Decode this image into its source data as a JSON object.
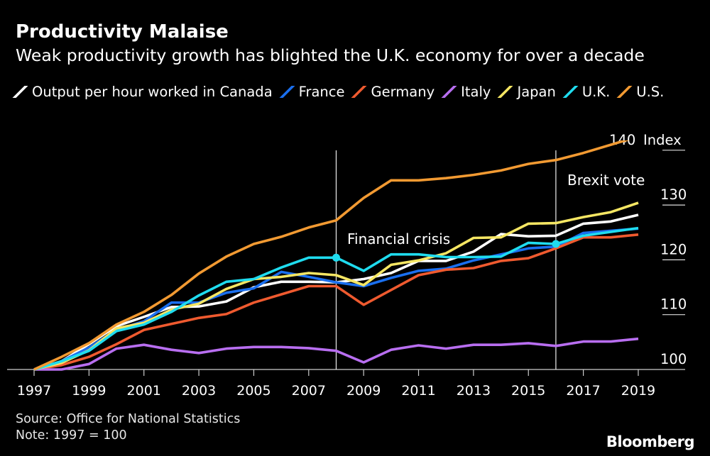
{
  "header": {
    "title": "Productivity Malaise",
    "subtitle": "Weak productivity growth has blighted the U.K. economy for over a decade"
  },
  "footer": {
    "source": "Source: Office for National Statistics",
    "note": "Note: 1997 = 100",
    "logo": "Bloomberg"
  },
  "chart_data": {
    "type": "line",
    "title": "Productivity Malaise",
    "ylabel": "Index",
    "ylim": [
      100,
      140
    ],
    "yticks": [
      "100",
      "110",
      "120",
      "130",
      "140"
    ],
    "y_unit_label": "Index",
    "x": [
      1997,
      1998,
      1999,
      2000,
      2001,
      2002,
      2003,
      2004,
      2005,
      2006,
      2007,
      2008,
      2009,
      2010,
      2011,
      2012,
      2013,
      2014,
      2015,
      2016,
      2017,
      2018,
      2019
    ],
    "xticks": [
      "1997",
      "1999",
      "2001",
      "2003",
      "2005",
      "2007",
      "2009",
      "2011",
      "2013",
      "2015",
      "2017",
      "2019"
    ],
    "legend_prefix": "Output per hour worked in",
    "annotations": [
      {
        "label": "Financial crisis",
        "x": 2008
      },
      {
        "label": "Brexit vote",
        "x": 2016
      }
    ],
    "series": [
      {
        "name": "Canada",
        "color": "#ffffff",
        "values": [
          100,
          101.5,
          104.6,
          107.9,
          109.6,
          111.4,
          111.5,
          112.4,
          115,
          116,
          116,
          115.9,
          116.5,
          117.6,
          119.8,
          119.8,
          121.5,
          124.7,
          124.3,
          124.4,
          126.6,
          127,
          128.2
        ]
      },
      {
        "name": "France",
        "color": "#1a6fef",
        "values": [
          100,
          101.5,
          104,
          107.2,
          108.8,
          112.2,
          112.2,
          114,
          114.8,
          117.8,
          116.9,
          115.9,
          115.2,
          116.7,
          118,
          118.4,
          119.9,
          121,
          122.1,
          122.4,
          124.9,
          125.3,
          125.7
        ]
      },
      {
        "name": "Germany",
        "color": "#ef5a2f",
        "values": [
          100,
          100.8,
          102.3,
          104.6,
          107.2,
          108.3,
          109.4,
          110.1,
          112.2,
          113.7,
          115.2,
          115.2,
          111.8,
          114.5,
          117.2,
          118.2,
          118.5,
          119.8,
          120.3,
          122.1,
          124.1,
          124.1,
          124.6
        ]
      },
      {
        "name": "Italy",
        "color": "#b86ef0",
        "values": [
          100,
          100,
          101,
          103.8,
          104.5,
          103.6,
          103,
          103.8,
          104.1,
          104.1,
          103.9,
          103.4,
          101.3,
          103.6,
          104.4,
          103.8,
          104.5,
          104.5,
          104.8,
          104.3,
          105.1,
          105.1,
          105.6
        ]
      },
      {
        "name": "Japan",
        "color": "#f5e663",
        "values": [
          100,
          101.2,
          103.5,
          107.5,
          108.5,
          110.9,
          112,
          114.7,
          116.5,
          116.9,
          117.6,
          117.2,
          115.4,
          119.1,
          119.9,
          121.2,
          124,
          124.1,
          126.6,
          126.7,
          127.8,
          128.7,
          130.4
        ]
      },
      {
        "name": "U.K.",
        "color": "#1fdcef",
        "values": [
          100,
          101.5,
          103.4,
          107,
          108.2,
          110.5,
          113.5,
          116,
          116.5,
          118.6,
          120.4,
          120.4,
          118,
          121,
          121,
          120.5,
          120.5,
          120.6,
          123.1,
          122.9,
          124.4,
          125.1,
          125.8
        ],
        "markers": [
          2008,
          2016
        ]
      },
      {
        "name": "U.S.",
        "color": "#f29a32",
        "values": [
          100,
          102.3,
          104.8,
          108.2,
          110.5,
          113.6,
          117.5,
          120.6,
          122.9,
          124.2,
          125.9,
          127.2,
          131.3,
          134.5,
          134.5,
          134.9,
          135.5,
          136.3,
          137.5,
          138.2,
          139.5,
          141,
          142.5
        ]
      }
    ]
  }
}
